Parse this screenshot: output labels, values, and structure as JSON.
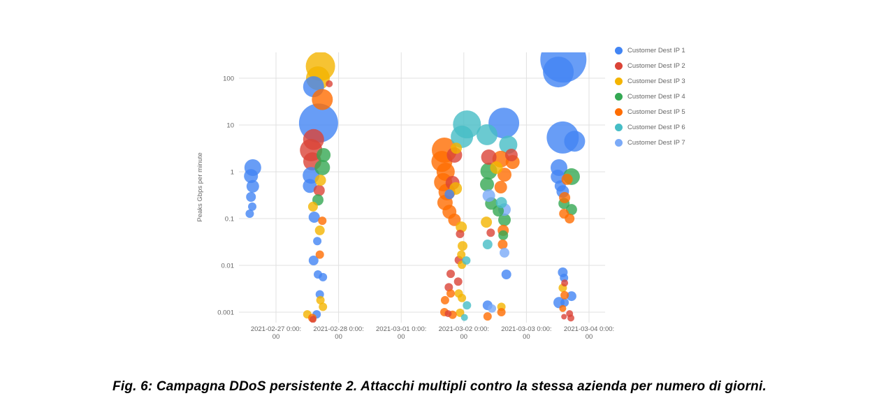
{
  "figure": {
    "caption": "Fig. 6: Campagna DDoS persistente 2. Attacchi multipli contro la stessa azienda per numero di giorni."
  },
  "chart_data": {
    "type": "scatter",
    "subtype": "bubble",
    "title": "",
    "xlabel": "",
    "ylabel": "Peaks Gbps per minute",
    "y_scale": "log",
    "y_ticks": [
      "100",
      "10",
      "1",
      "0.1",
      "0.01",
      "0.001"
    ],
    "y_tick_values": [
      100,
      10,
      1,
      0.1,
      0.01,
      0.001
    ],
    "x_ticks": [
      "2021-02-27 0:00:00",
      "2021-02-28 0:00:00",
      "2021-03-01 0:00:00",
      "2021-03-02 0:00:00",
      "2021-03-03 0:00:00",
      "2021-03-04 0:00:00"
    ],
    "x_unit": "fractional days since 2021-02-27 00:00",
    "y_unit": "Gbps per minute (log scale)",
    "size_unit": "relative attack volume (rendered bubble radius px)",
    "grid": true,
    "legend_position": "right",
    "series": [
      {
        "name": "Customer Dest IP 1",
        "color": "#4285F4",
        "points": [
          [
            -0.37,
            1.23,
            12
          ],
          [
            -0.4,
            0.81,
            10
          ],
          [
            -0.37,
            0.49,
            9
          ],
          [
            -0.4,
            0.29,
            7
          ],
          [
            -0.38,
            0.18,
            6
          ],
          [
            -0.42,
            0.127,
            6
          ],
          [
            0.6,
            66,
            15
          ],
          [
            0.68,
            11,
            28
          ],
          [
            0.56,
            0.84,
            12
          ],
          [
            0.54,
            0.5,
            10
          ],
          [
            0.61,
            0.107,
            8
          ],
          [
            0.66,
            0.033,
            6
          ],
          [
            0.6,
            0.0127,
            7
          ],
          [
            0.67,
            0.0064,
            6
          ],
          [
            0.75,
            0.0056,
            6
          ],
          [
            0.7,
            0.0024,
            6
          ],
          [
            0.65,
            0.0009,
            6
          ],
          [
            2.77,
            0.33,
            7
          ],
          [
            3.64,
            11,
            22
          ],
          [
            3.68,
            0.0064,
            7
          ],
          [
            3.38,
            0.0014,
            7
          ],
          [
            4.59,
            250,
            33
          ],
          [
            4.51,
            136,
            22
          ],
          [
            4.58,
            5.4,
            23
          ],
          [
            4.77,
            4.5,
            15
          ],
          [
            4.52,
            1.23,
            12
          ],
          [
            4.5,
            0.79,
            10
          ],
          [
            4.54,
            0.5,
            8
          ],
          [
            4.58,
            0.38,
            9
          ],
          [
            4.58,
            0.0071,
            7
          ],
          [
            4.6,
            0.0054,
            6
          ],
          [
            4.72,
            0.0022,
            7
          ],
          [
            4.52,
            0.0016,
            8
          ],
          [
            4.61,
            0.0016,
            6
          ]
        ]
      },
      {
        "name": "Customer Dest IP 2",
        "color": "#DB4437",
        "points": [
          [
            0.85,
            76,
            5
          ],
          [
            0.6,
            4.9,
            15
          ],
          [
            0.56,
            2.9,
            16
          ],
          [
            0.58,
            1.67,
            13
          ],
          [
            0.69,
            0.4,
            8
          ],
          [
            0.59,
            0.0007,
            5
          ],
          [
            2.85,
            2.28,
            11
          ],
          [
            2.82,
            0.58,
            10
          ],
          [
            2.94,
            0.047,
            6
          ],
          [
            2.92,
            0.013,
            6
          ],
          [
            2.79,
            0.0066,
            6
          ],
          [
            2.91,
            0.0045,
            6
          ],
          [
            2.76,
            0.0034,
            6
          ],
          [
            2.75,
            0.00093,
            5
          ],
          [
            3.4,
            2.06,
            11
          ],
          [
            3.76,
            2.28,
            9
          ],
          [
            3.43,
            0.05,
            6
          ],
          [
            4.61,
            0.0042,
            5
          ],
          [
            4.69,
            0.00093,
            5
          ],
          [
            4.6,
            0.0008,
            4
          ],
          [
            4.71,
            0.00075,
            5
          ]
        ]
      },
      {
        "name": "Customer Dest IP 3",
        "color": "#F4B400",
        "points": [
          [
            0.71,
            180,
            21
          ],
          [
            0.67,
            100,
            17
          ],
          [
            0.71,
            0.66,
            8
          ],
          [
            0.59,
            0.18,
            7
          ],
          [
            0.7,
            0.056,
            7
          ],
          [
            0.71,
            0.0018,
            6
          ],
          [
            0.75,
            0.0013,
            6
          ],
          [
            0.5,
            0.0009,
            6
          ],
          [
            2.88,
            3.2,
            8
          ],
          [
            2.87,
            0.44,
            9
          ],
          [
            2.96,
            0.066,
            8
          ],
          [
            2.98,
            0.026,
            7
          ],
          [
            2.96,
            0.017,
            6
          ],
          [
            2.97,
            0.0103,
            6
          ],
          [
            2.92,
            0.0025,
            6
          ],
          [
            2.97,
            0.002,
            6
          ],
          [
            2.94,
            0.00097,
            6
          ],
          [
            3.52,
            1.23,
            9
          ],
          [
            3.36,
            0.084,
            8
          ],
          [
            3.6,
            0.0013,
            6
          ],
          [
            4.58,
            0.0033,
            6
          ]
        ]
      },
      {
        "name": "Customer Dest IP 4",
        "color": "#34A853",
        "points": [
          [
            0.76,
            2.28,
            10
          ],
          [
            0.74,
            1.23,
            11
          ],
          [
            0.67,
            0.25,
            8
          ],
          [
            3.4,
            1.035,
            12
          ],
          [
            3.37,
            0.54,
            10
          ],
          [
            3.44,
            0.21,
            9
          ],
          [
            3.55,
            0.146,
            8
          ],
          [
            3.65,
            0.094,
            9
          ],
          [
            3.63,
            0.044,
            7
          ],
          [
            4.72,
            0.79,
            12
          ],
          [
            4.6,
            0.21,
            8
          ],
          [
            4.72,
            0.156,
            8
          ]
        ]
      },
      {
        "name": "Customer Dest IP 5",
        "color": "#FF6D01",
        "points": [
          [
            0.74,
            35,
            15
          ],
          [
            0.74,
            0.09,
            6
          ],
          [
            0.7,
            0.017,
            6
          ],
          [
            0.58,
            0.00075,
            6
          ],
          [
            2.69,
            2.9,
            18
          ],
          [
            2.65,
            1.67,
            15
          ],
          [
            2.71,
            1.0,
            13
          ],
          [
            2.67,
            0.6,
            13
          ],
          [
            2.73,
            0.37,
            12
          ],
          [
            2.7,
            0.22,
            11
          ],
          [
            2.77,
            0.14,
            10
          ],
          [
            2.85,
            0.094,
            9
          ],
          [
            2.79,
            0.0025,
            6
          ],
          [
            2.7,
            0.0018,
            6
          ],
          [
            2.69,
            0.001,
            6
          ],
          [
            2.82,
            0.00088,
            6
          ],
          [
            3.59,
            1.86,
            12
          ],
          [
            3.78,
            1.62,
            10
          ],
          [
            3.65,
            0.87,
            10
          ],
          [
            3.59,
            0.47,
            9
          ],
          [
            3.63,
            0.056,
            8
          ],
          [
            3.62,
            0.028,
            7
          ],
          [
            3.6,
            0.001,
            6
          ],
          [
            3.38,
            0.00081,
            6
          ],
          [
            4.65,
            0.69,
            8
          ],
          [
            4.61,
            0.28,
            8
          ],
          [
            4.6,
            0.127,
            7
          ],
          [
            4.69,
            0.1,
            7
          ],
          [
            4.61,
            0.0023,
            6
          ],
          [
            4.58,
            0.0012,
            5
          ]
        ]
      },
      {
        "name": "Customer Dest IP 6",
        "color": "#46BDC6",
        "points": [
          [
            3.05,
            10.3,
            20
          ],
          [
            2.97,
            5.6,
            16
          ],
          [
            3.04,
            0.0127,
            6
          ],
          [
            3.05,
            0.0014,
            6
          ],
          [
            3.01,
            0.00077,
            5
          ],
          [
            3.37,
            6.2,
            15
          ],
          [
            3.71,
            3.8,
            13
          ],
          [
            3.6,
            0.22,
            8
          ],
          [
            3.38,
            0.028,
            7
          ]
        ]
      },
      {
        "name": "Customer Dest IP 7",
        "color": "#7BAAF7",
        "points": [
          [
            3.4,
            0.31,
            9
          ],
          [
            3.65,
            0.156,
            9
          ],
          [
            3.65,
            0.0186,
            7
          ],
          [
            3.45,
            0.0012,
            6
          ]
        ]
      }
    ]
  }
}
